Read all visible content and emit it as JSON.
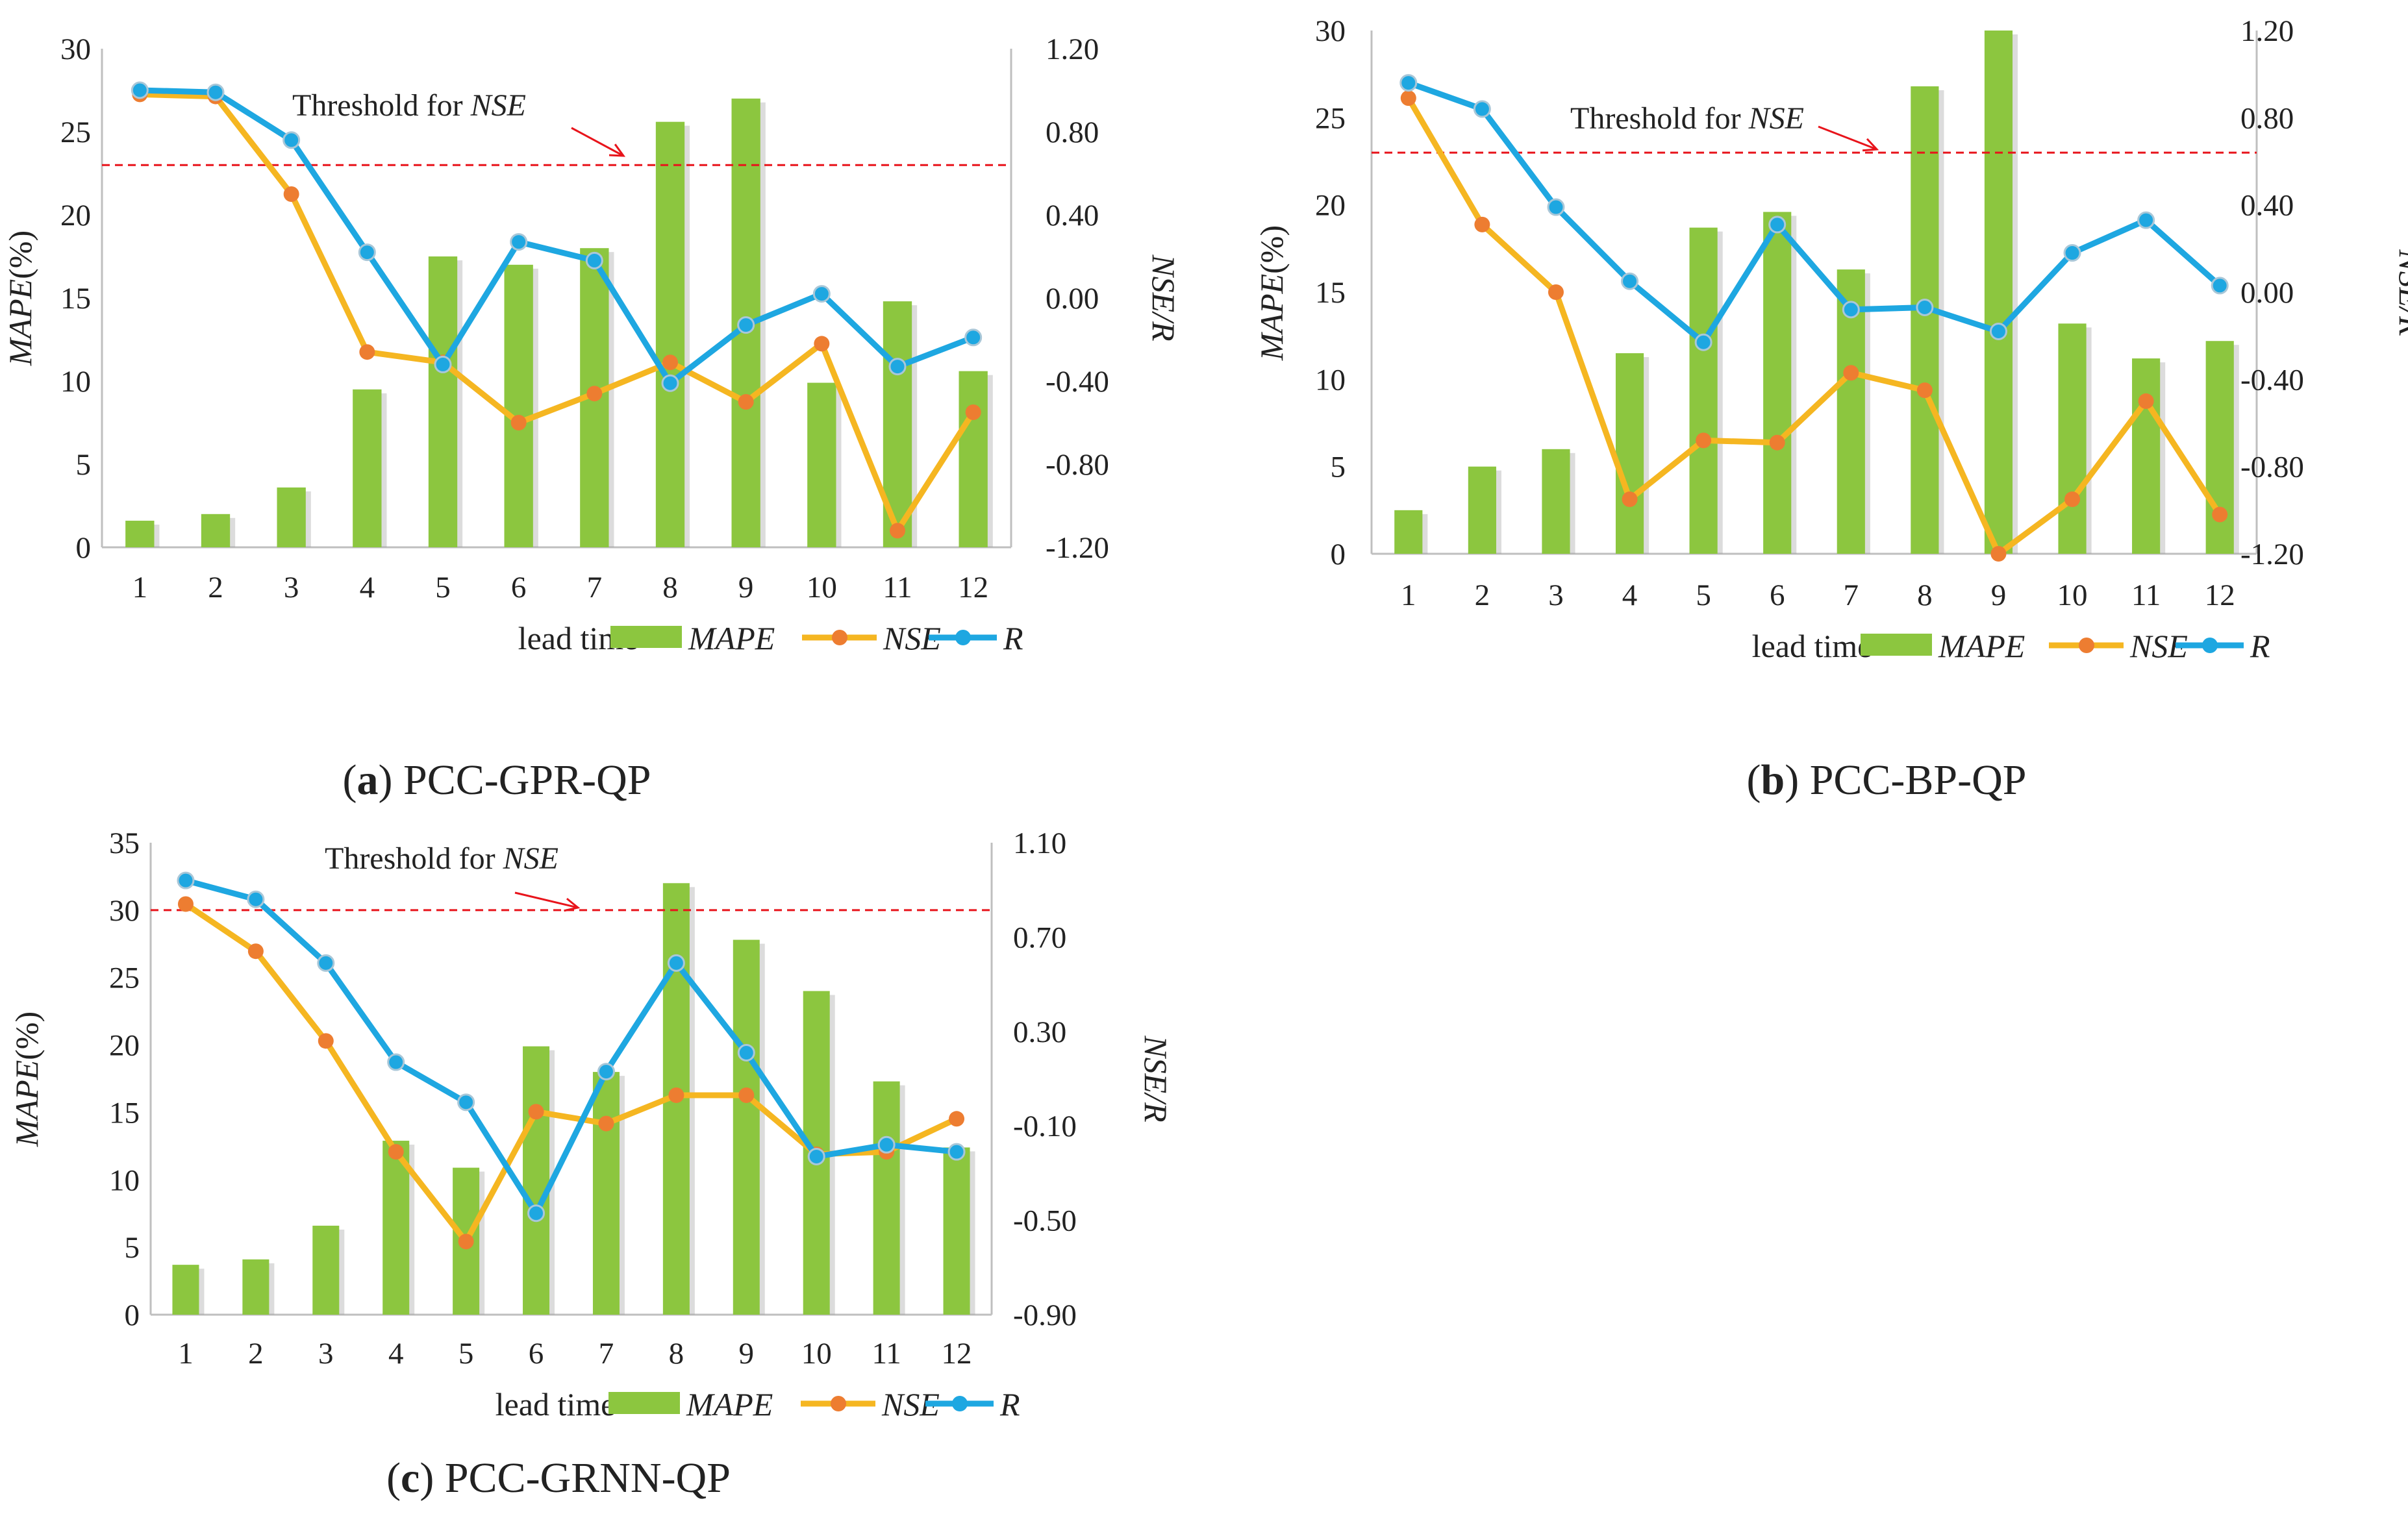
{
  "colors": {
    "mape": "#8cc63f",
    "nse": "#f5b621",
    "nse_marker": "#ed7d31",
    "r": "#1ea7e1",
    "threshold": "#e8141b",
    "axis": "#bfbfbf",
    "text": "#222222"
  },
  "chart_data": [
    {
      "id": "a",
      "type": "bar+line",
      "caption_letter": "a",
      "caption_text": "PCC-GPR-QP",
      "categories": [
        "1",
        "2",
        "3",
        "4",
        "5",
        "6",
        "7",
        "8",
        "9",
        "10",
        "11",
        "12"
      ],
      "xlabel": "lead time",
      "ylabel_left": "MAPE",
      "ylabel_left_suffix": "(%)",
      "ylabel_right": "NSE/R",
      "ylim_left": [
        0,
        30
      ],
      "left_ticks": [
        "0",
        "5",
        "10",
        "15",
        "20",
        "25",
        "30"
      ],
      "ylim_right": [
        -1.2,
        1.2
      ],
      "right_ticks": [
        "-1.20",
        "-0.80",
        "-0.40",
        "0.00",
        "0.40",
        "0.80",
        "1.20"
      ],
      "threshold_label": "Threshold   for ",
      "threshold_label_em": "NSE",
      "threshold_value_left": 23,
      "series": [
        {
          "name": "MAPE",
          "kind": "bar",
          "axis": "left",
          "values": [
            1.6,
            2.0,
            3.6,
            9.5,
            17.5,
            17.0,
            18.0,
            25.6,
            27.0,
            9.9,
            14.8,
            10.6
          ]
        },
        {
          "name": "NSE",
          "kind": "line",
          "axis": "right",
          "values": [
            0.98,
            0.97,
            0.5,
            -0.26,
            -0.31,
            -0.6,
            -0.46,
            -0.31,
            -0.5,
            -0.22,
            -1.12,
            -0.55
          ]
        },
        {
          "name": "R",
          "kind": "line",
          "axis": "right",
          "values": [
            1.0,
            0.99,
            0.76,
            0.22,
            -0.32,
            0.27,
            0.18,
            -0.41,
            -0.13,
            0.02,
            -0.33,
            -0.19
          ]
        }
      ],
      "legend": [
        "MAPE",
        "NSE",
        "R"
      ]
    },
    {
      "id": "b",
      "type": "bar+line",
      "caption_letter": "b",
      "caption_text": "PCC-BP-QP",
      "categories": [
        "1",
        "2",
        "3",
        "4",
        "5",
        "6",
        "7",
        "8",
        "9",
        "10",
        "11",
        "12"
      ],
      "xlabel": "lead time",
      "ylabel_left": "MAPE",
      "ylabel_left_suffix": "(%)",
      "ylabel_right": "NSE/R",
      "ylim_left": [
        0,
        30
      ],
      "left_ticks": [
        "0",
        "5",
        "10",
        "15",
        "20",
        "25",
        "30"
      ],
      "ylim_right": [
        -1.2,
        1.2
      ],
      "right_ticks": [
        "-1.20",
        "-0.80",
        "-0.40",
        "0.00",
        "0.40",
        "0.80",
        "1.20"
      ],
      "threshold_label": "Threshold for ",
      "threshold_label_em": "NSE",
      "threshold_value_left": 23,
      "series": [
        {
          "name": "MAPE",
          "kind": "bar",
          "axis": "left",
          "values": [
            2.5,
            5.0,
            6.0,
            11.5,
            18.7,
            19.6,
            16.3,
            26.8,
            30.0,
            13.2,
            11.2,
            12.2
          ]
        },
        {
          "name": "NSE",
          "kind": "line",
          "axis": "right",
          "values": [
            0.89,
            0.31,
            0.0,
            -0.95,
            -0.68,
            -0.69,
            -0.37,
            -0.45,
            -1.2,
            -0.95,
            -0.5,
            -1.02
          ]
        },
        {
          "name": "R",
          "kind": "line",
          "axis": "right",
          "values": [
            0.96,
            0.84,
            0.39,
            0.05,
            -0.23,
            0.31,
            -0.08,
            -0.07,
            -0.18,
            0.18,
            0.33,
            0.03
          ]
        }
      ],
      "legend": [
        "MAPE",
        "NSE",
        "R"
      ]
    },
    {
      "id": "c",
      "type": "bar+line",
      "caption_letter": "c",
      "caption_text": "PCC-GRNN-QP",
      "categories": [
        "1",
        "2",
        "3",
        "4",
        "5",
        "6",
        "7",
        "8",
        "9",
        "10",
        "11",
        "12"
      ],
      "xlabel": "lead time",
      "ylabel_left": "MAPE",
      "ylabel_left_suffix": "(%)",
      "ylabel_right": "NSE/R",
      "ylim_left": [
        0,
        35
      ],
      "left_ticks": [
        "0",
        "5",
        "10",
        "15",
        "20",
        "25",
        "30",
        "35"
      ],
      "ylim_right": [
        -0.9,
        1.1
      ],
      "right_ticks": [
        "-0.90",
        "-0.50",
        "-0.10",
        "0.30",
        "0.70",
        "1.10"
      ],
      "threshold_label": "Threshold for ",
      "threshold_label_em": "NSE",
      "threshold_value_left": 30,
      "series": [
        {
          "name": "MAPE",
          "kind": "bar",
          "axis": "left",
          "values": [
            3.7,
            4.1,
            6.6,
            12.9,
            10.9,
            19.9,
            18.0,
            32.0,
            27.8,
            24.0,
            17.3,
            12.4
          ]
        },
        {
          "name": "NSE",
          "kind": "line",
          "axis": "right",
          "values": [
            0.84,
            0.64,
            0.26,
            -0.21,
            -0.59,
            -0.04,
            -0.09,
            0.03,
            0.03,
            -0.22,
            -0.21,
            -0.07
          ]
        },
        {
          "name": "R",
          "kind": "line",
          "axis": "right",
          "values": [
            0.94,
            0.86,
            0.59,
            0.17,
            0.0,
            -0.47,
            0.13,
            0.59,
            0.21,
            -0.23,
            -0.18,
            -0.21
          ]
        }
      ],
      "legend": [
        "MAPE",
        "NSE",
        "R"
      ]
    }
  ]
}
